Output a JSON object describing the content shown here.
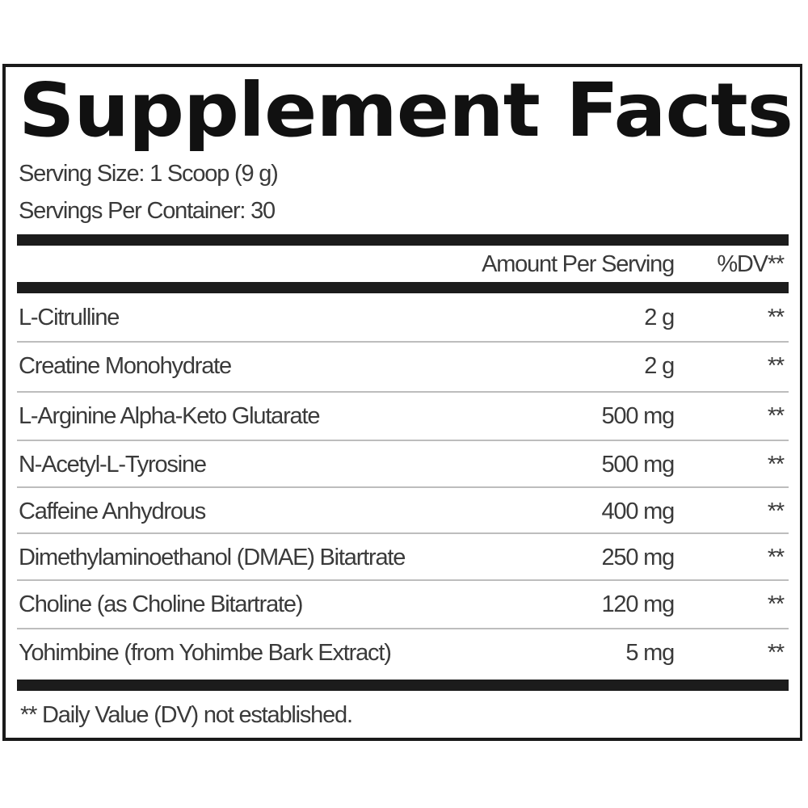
{
  "title": "Supplement Facts",
  "serving_size": "Serving Size: 1 Scoop (9 g)",
  "servings_per_container": "Servings Per Container: 30",
  "header": {
    "amount": "Amount Per Serving",
    "dv": "%DV**"
  },
  "rows": [
    {
      "name": "L-Citrulline",
      "amount": "2 g",
      "dv": "**"
    },
    {
      "name": "Creatine Monohydrate",
      "amount": "2 g",
      "dv": "**"
    },
    {
      "name": "L-Arginine Alpha-Keto Glutarate",
      "amount": "500 mg",
      "dv": "**"
    },
    {
      "name": "N-Acetyl-L-Tyrosine",
      "amount": "500 mg",
      "dv": "**"
    },
    {
      "name": "Caffeine Anhydrous",
      "amount": "400 mg",
      "dv": "**"
    },
    {
      "name": "Dimethylaminoethanol (DMAE) Bitartrate",
      "amount": "250 mg",
      "dv": "**"
    },
    {
      "name": "Choline (as Choline Bitartrate)",
      "amount": "120 mg",
      "dv": "**"
    },
    {
      "name": "Yohimbine (from Yohimbe Bark Extract)",
      "amount": "5 mg",
      "dv": "**"
    }
  ],
  "footnote": "** Daily Value (DV) not established."
}
